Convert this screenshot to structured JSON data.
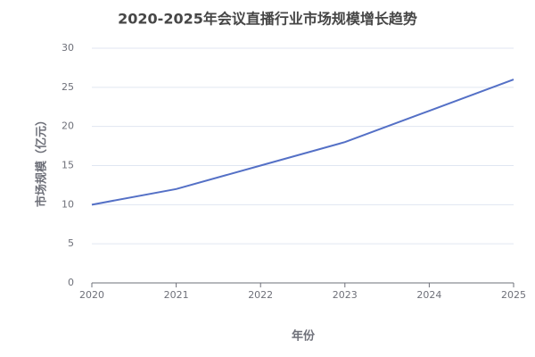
{
  "chart_data": {
    "type": "line",
    "title": "2020-2025年会议直播行业市场规模增长趋势",
    "x_label": "年份",
    "y_label": "市场规模（亿元）",
    "x": [
      2020,
      2021,
      2022,
      2023,
      2024,
      2025
    ],
    "values": [
      10,
      12,
      15,
      18,
      22,
      26
    ],
    "color": "#5470c6",
    "xlim": [
      2020,
      2025
    ],
    "xticks": [
      2020,
      2021,
      2022,
      2023,
      2024,
      2025
    ],
    "ylim": [
      0,
      30
    ],
    "yticks": [
      0,
      5,
      10,
      15,
      20,
      25,
      30
    ],
    "grid": true
  }
}
